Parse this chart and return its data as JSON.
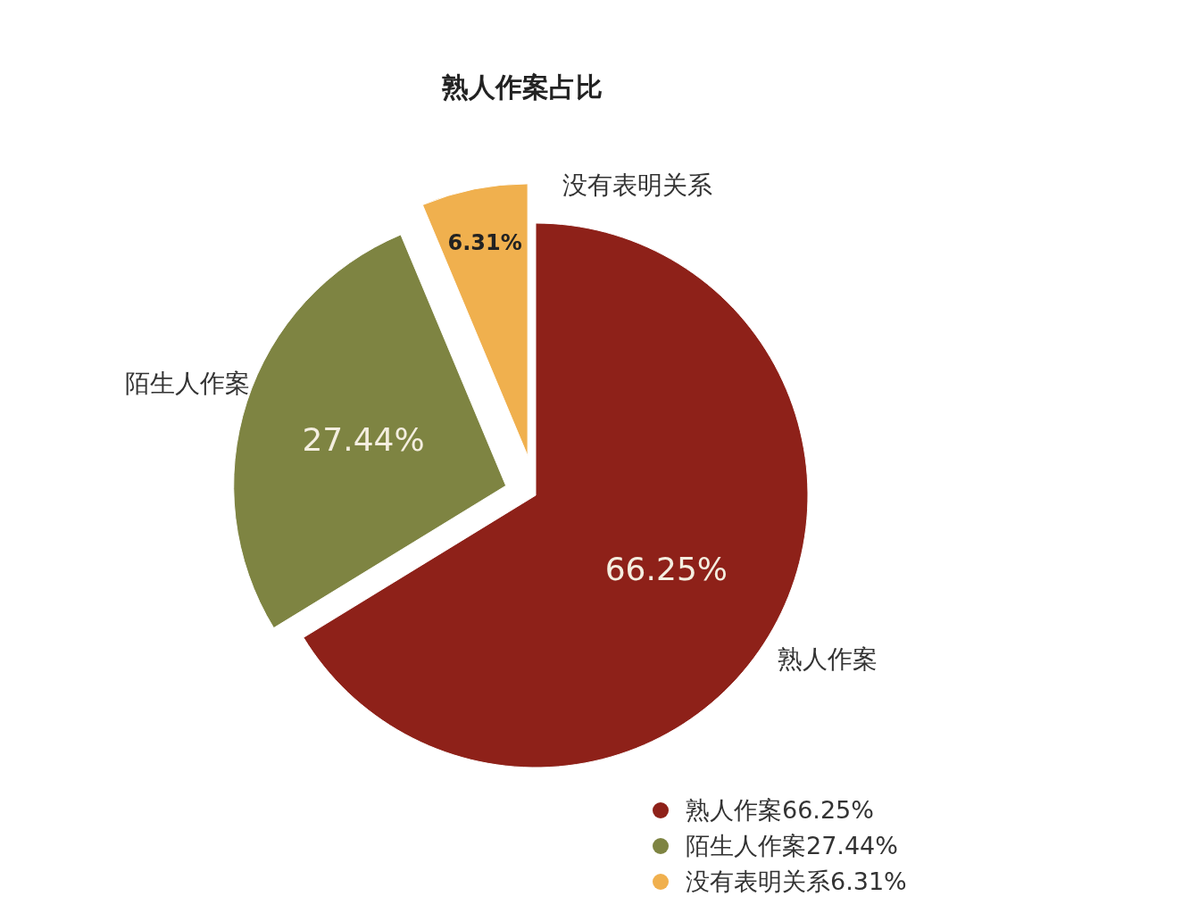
{
  "chart_data": {
    "type": "pie",
    "title": "熟人作案占比",
    "categories": [
      "熟人作案",
      "陌生人作案",
      "没有表明关系"
    ],
    "values": [
      66.25,
      27.44,
      6.31
    ],
    "colors": [
      "#8e2119",
      "#7e8442",
      "#f0b04e"
    ],
    "value_labels": [
      "66.25%",
      "27.44%",
      "6.31%"
    ],
    "legend": "bottom right"
  }
}
